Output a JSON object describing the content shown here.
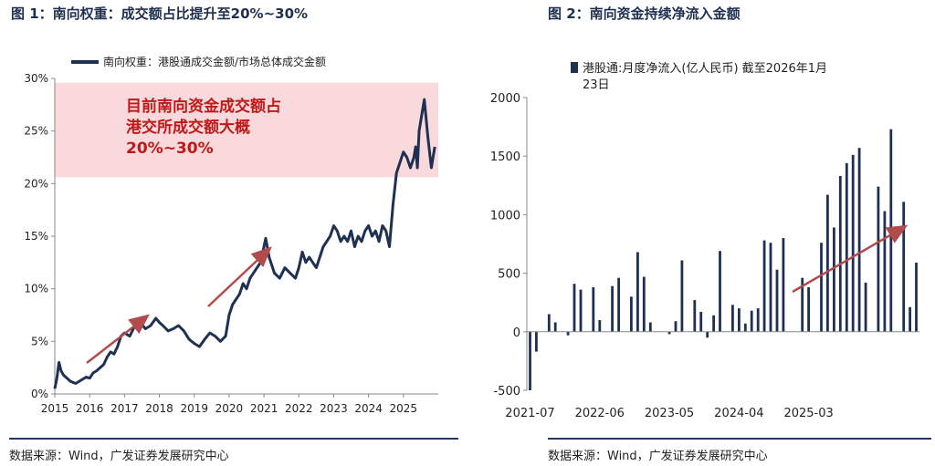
{
  "left": {
    "title": "图 1：南向权重：成交额占比提升至20%~30%",
    "source": "数据来源：Wind，广发证券发展研究中心",
    "annotation": [
      "目前南向资金成交额占",
      "港交所成交额大概",
      "20%~30%"
    ],
    "colors": {
      "line": "#1f3152",
      "band": "#f9d9dc",
      "arrow": "#b24b4b",
      "annotation": "#c01818"
    },
    "chart_data": {
      "type": "line",
      "series": [
        {
          "name": "南向权重：港股通成交金额/市场总体成交金额",
          "x": [
            2015.0,
            2015.06,
            2015.12,
            2015.18,
            2015.25,
            2015.35,
            2015.45,
            2015.6,
            2015.75,
            2015.9,
            2016.0,
            2016.1,
            2016.2,
            2016.3,
            2016.4,
            2016.5,
            2016.6,
            2016.7,
            2016.8,
            2016.9,
            2017.0,
            2017.15,
            2017.3,
            2017.45,
            2017.6,
            2017.75,
            2017.9,
            2018.0,
            2018.1,
            2018.25,
            2018.4,
            2018.55,
            2018.7,
            2018.85,
            2019.0,
            2019.15,
            2019.3,
            2019.45,
            2019.6,
            2019.75,
            2019.9,
            2020.0,
            2020.1,
            2020.2,
            2020.3,
            2020.4,
            2020.5,
            2020.6,
            2020.7,
            2020.8,
            2020.9,
            2021.0,
            2021.05,
            2021.15,
            2021.3,
            2021.45,
            2021.6,
            2021.75,
            2021.9,
            2022.0,
            2022.1,
            2022.2,
            2022.3,
            2022.4,
            2022.5,
            2022.6,
            2022.7,
            2022.8,
            2022.9,
            2023.0,
            2023.1,
            2023.2,
            2023.3,
            2023.4,
            2023.5,
            2023.6,
            2023.7,
            2023.8,
            2023.9,
            2024.0,
            2024.1,
            2024.2,
            2024.3,
            2024.4,
            2024.5,
            2024.6,
            2024.7,
            2024.75,
            2024.8,
            2024.9,
            2025.0,
            2025.1,
            2025.2,
            2025.3,
            2025.35,
            2025.4,
            2025.45,
            2025.5,
            2025.6,
            2025.7,
            2025.8,
            2025.9
          ],
          "y": [
            0.5,
            1.5,
            3.0,
            2.2,
            1.8,
            1.5,
            1.2,
            1.0,
            1.3,
            1.6,
            1.5,
            2.0,
            2.2,
            2.5,
            2.8,
            3.5,
            4.0,
            3.8,
            4.5,
            5.5,
            5.8,
            5.5,
            6.5,
            6.8,
            6.2,
            6.5,
            7.2,
            6.8,
            6.5,
            6.0,
            6.2,
            6.5,
            6.0,
            5.2,
            4.8,
            4.5,
            5.2,
            5.8,
            5.5,
            5.0,
            5.5,
            7.5,
            8.5,
            9.0,
            9.5,
            10.5,
            10.0,
            11.0,
            11.5,
            12.0,
            12.5,
            14.0,
            14.8,
            13.0,
            11.5,
            11.0,
            12.0,
            11.5,
            11.0,
            12.0,
            13.5,
            12.5,
            13.0,
            12.5,
            12.0,
            13.0,
            14.0,
            14.5,
            15.0,
            16.0,
            15.5,
            14.5,
            15.0,
            14.5,
            15.5,
            14.0,
            15.0,
            14.5,
            15.5,
            16.0,
            15.0,
            15.5,
            14.5,
            16.0,
            15.5,
            14.0,
            18.0,
            19.5,
            21.0,
            22.0,
            23.0,
            22.5,
            21.5,
            22.5,
            23.5,
            21.5,
            25.0,
            26.0,
            28.0,
            24.5,
            21.5,
            23.5
          ]
        }
      ],
      "xticks": [
        "2015",
        "2016",
        "2017",
        "2018",
        "2019",
        "2020",
        "2021",
        "2022",
        "2023",
        "2024",
        "2025"
      ],
      "yticks": [
        "0%",
        "5%",
        "10%",
        "15%",
        "20%",
        "25%",
        "30%"
      ],
      "xlim": [
        2015,
        2026
      ],
      "ylim": [
        0,
        30
      ],
      "highlight_band": [
        20.6,
        29.6
      ],
      "legend": "top-left"
    }
  },
  "right": {
    "title": "图 2：南向资金持续净流入金额",
    "source": "数据来源：Wind，广发证券发展研究中心",
    "colors": {
      "bar": "#1f3152",
      "arrow": "#b24b4b"
    },
    "chart_data": {
      "type": "bar",
      "legend": "top",
      "series": [
        {
          "name": "港股通:月度净流入(亿人民币) 截至2026年1月23日",
          "values": [
            -500,
            -170,
            0,
            150,
            80,
            0,
            -30,
            410,
            360,
            0,
            380,
            100,
            0,
            390,
            460,
            0,
            300,
            680,
            470,
            80,
            0,
            0,
            -20,
            90,
            610,
            0,
            270,
            170,
            -50,
            140,
            690,
            0,
            230,
            200,
            70,
            180,
            200,
            780,
            760,
            530,
            800,
            0,
            0,
            460,
            380,
            0,
            760,
            1170,
            890,
            1330,
            1440,
            1510,
            1570,
            420,
            0,
            1240,
            1030,
            1730,
            0,
            1110,
            210,
            590
          ]
        }
      ],
      "categories": [
        "2021-07",
        "2021-08",
        "2021-09",
        "2021-10",
        "2021-11",
        "2021-12",
        "2022-01",
        "2022-02",
        "2022-03",
        "2022-04",
        "2022-05",
        "2022-06",
        "2022-07",
        "2022-08",
        "2022-09",
        "2022-10",
        "2022-11",
        "2022-12",
        "2023-01",
        "2023-02",
        "2023-03",
        "2023-04",
        "2023-05",
        "2023-06",
        "2023-07",
        "2023-08",
        "2023-09",
        "2023-10",
        "2023-11",
        "2023-12",
        "2024-01",
        "2024-02",
        "2024-03",
        "2024-04",
        "2024-05",
        "2024-06",
        "2024-07",
        "2024-08",
        "2024-09",
        "2024-10",
        "2024-11",
        "2024-12",
        "2025-01",
        "2025-02",
        "2025-03",
        "2025-04",
        "2025-05",
        "2025-06",
        "2025-07",
        "2025-08",
        "2025-09",
        "2025-10",
        "2025-11",
        "2025-12",
        "2026-01",
        "2026-02",
        "2026-03",
        "2026-04",
        "2026-05",
        "2026-06",
        "2026-07",
        "2026-08"
      ],
      "xticks": [
        "2021-07",
        "2022-06",
        "2023-05",
        "2024-04",
        "2025-03"
      ],
      "yticks": [
        "-500",
        "0",
        "500",
        "1000",
        "1500",
        "2000"
      ],
      "ylim": [
        -500,
        2000
      ]
    }
  }
}
